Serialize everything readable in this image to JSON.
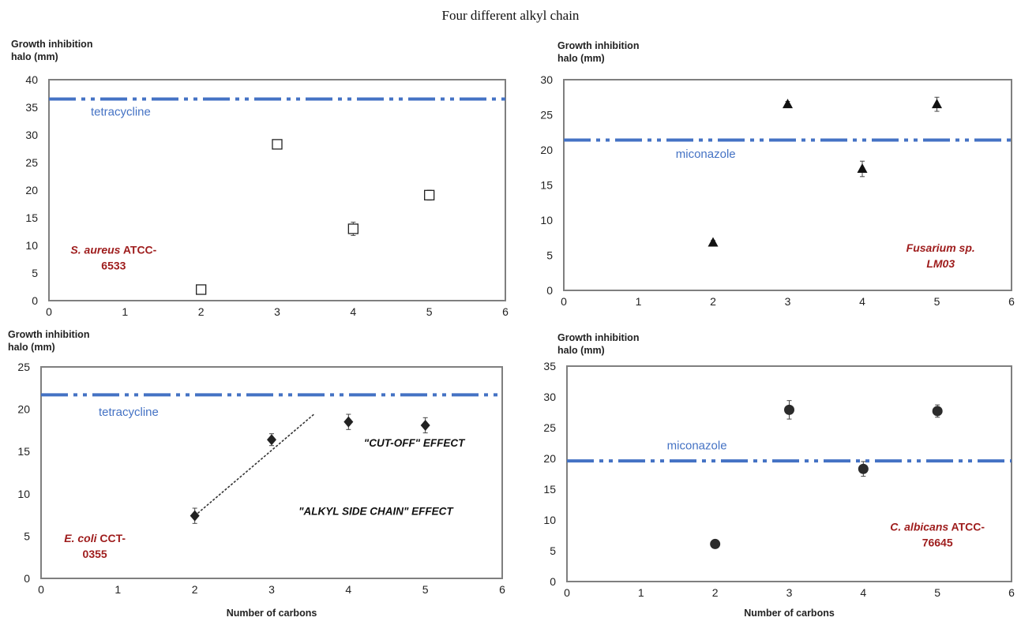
{
  "page_title": "Four different alkyl chain",
  "chart_data": [
    {
      "id": "s-aureus",
      "type": "scatter",
      "ylabel_lines": [
        "Growth inhibition",
        "halo (mm)"
      ],
      "xlabel": "",
      "xlim": [
        0,
        6
      ],
      "ylim": [
        0,
        40
      ],
      "xticks": [
        "0",
        "1",
        "2",
        "3",
        "4",
        "5",
        "6"
      ],
      "yticks": [
        "0",
        "5",
        "10",
        "15",
        "20",
        "25",
        "30",
        "35",
        "40"
      ],
      "marker": "open-square",
      "points": [
        {
          "x": 2,
          "y": 2,
          "err": 0.5
        },
        {
          "x": 3,
          "y": 28.3,
          "err": 0.6
        },
        {
          "x": 4,
          "y": 13,
          "err": 1.2
        },
        {
          "x": 5,
          "y": 19.1,
          "err": 0.9
        }
      ],
      "reference": {
        "label": "tetracycline",
        "y": 36.5,
        "color": "#4472c4"
      },
      "organism_lines": [
        [
          {
            "text": "S. aureus",
            "italic": true
          },
          {
            "text": " ATCC-",
            "italic": false
          }
        ],
        [
          {
            "text": "6533",
            "italic": false
          }
        ]
      ],
      "organism_anchor": {
        "x": 0.85,
        "y": 8.5
      },
      "ref_label_anchor": {
        "x": 0.55,
        "y": 33.5
      },
      "annotations": [],
      "trendline": null
    },
    {
      "id": "fusarium",
      "type": "scatter",
      "ylabel_lines": [
        "Growth inhibition",
        "halo (mm)"
      ],
      "xlabel": "",
      "xlim": [
        0,
        6
      ],
      "ylim": [
        0,
        30
      ],
      "xticks": [
        "0",
        "1",
        "2",
        "3",
        "4",
        "5",
        "6"
      ],
      "yticks": [
        "0",
        "5",
        "10",
        "15",
        "20",
        "25",
        "30"
      ],
      "marker": "filled-triangle",
      "points": [
        {
          "x": 2,
          "y": 6.8,
          "err": 0.3
        },
        {
          "x": 3,
          "y": 26.5,
          "err": 0.4
        },
        {
          "x": 4,
          "y": 17.3,
          "err": 1.1
        },
        {
          "x": 5,
          "y": 26.5,
          "err": 1.0
        }
      ],
      "reference": {
        "label": "miconazole",
        "y": 21.4,
        "color": "#4472c4"
      },
      "organism_lines": [
        [
          {
            "text": "Fusarium sp.",
            "italic": true
          }
        ],
        [
          {
            "text": "LM03",
            "italic": true
          }
        ]
      ],
      "organism_anchor": {
        "x": 5.05,
        "y": 5.5
      },
      "ref_label_anchor": {
        "x": 1.5,
        "y": 18.9
      },
      "annotations": [],
      "trendline": null
    },
    {
      "id": "e-coli",
      "type": "scatter",
      "ylabel_lines": [
        "Growth inhibition",
        "halo (mm)"
      ],
      "xlabel": "Number of carbons",
      "xlim": [
        0,
        6
      ],
      "ylim": [
        0,
        25
      ],
      "xticks": [
        "0",
        "1",
        "2",
        "3",
        "4",
        "5",
        "6"
      ],
      "yticks": [
        "0",
        "5",
        "10",
        "15",
        "20",
        "25"
      ],
      "marker": "filled-diamond",
      "points": [
        {
          "x": 2,
          "y": 7.4,
          "err": 0.9
        },
        {
          "x": 3,
          "y": 16.4,
          "err": 0.7
        },
        {
          "x": 4,
          "y": 18.5,
          "err": 0.9
        },
        {
          "x": 5,
          "y": 18.1,
          "err": 0.9
        }
      ],
      "reference": {
        "label": "tetracycline",
        "y": 21.7,
        "color": "#4472c4"
      },
      "organism_lines": [
        [
          {
            "text": "E. coli",
            "italic": true
          },
          {
            "text": " CCT-",
            "italic": false
          }
        ],
        [
          {
            "text": "0355",
            "italic": false
          }
        ]
      ],
      "organism_anchor": {
        "x": 0.7,
        "y": 4.3
      },
      "ref_label_anchor": {
        "x": 0.75,
        "y": 19.2
      },
      "annotations": [
        {
          "text": "\"CUT-OFF\" EFFECT",
          "x": 4.2,
          "y": 15.6
        },
        {
          "text": "\"ALKYL  SIDE CHAIN\" EFFECT",
          "x": 3.35,
          "y": 7.5
        }
      ],
      "trendline": {
        "x0": 2,
        "y0": 7.4,
        "x1": 3.55,
        "y1": 19.4
      }
    },
    {
      "id": "c-albicans",
      "type": "scatter",
      "ylabel_lines": [
        "Growth inhibition",
        "halo (mm)"
      ],
      "xlabel": "Number of carbons",
      "xlim": [
        0,
        6
      ],
      "ylim": [
        0,
        35
      ],
      "xticks": [
        "0",
        "1",
        "2",
        "3",
        "4",
        "5",
        "6"
      ],
      "yticks": [
        "0",
        "5",
        "10",
        "15",
        "20",
        "25",
        "30",
        "35"
      ],
      "marker": "filled-circle",
      "points": [
        {
          "x": 2,
          "y": 6.1,
          "err": 0.3
        },
        {
          "x": 3,
          "y": 27.9,
          "err": 1.5
        },
        {
          "x": 4,
          "y": 18.3,
          "err": 1.2
        },
        {
          "x": 5,
          "y": 27.7,
          "err": 1.0
        }
      ],
      "reference": {
        "label": "miconazole",
        "y": 19.6,
        "color": "#4472c4"
      },
      "organism_lines": [
        [
          {
            "text": "C. albicans",
            "italic": true
          },
          {
            "text": " ATCC-",
            "italic": false
          }
        ],
        [
          {
            "text": "76645",
            "italic": false
          }
        ]
      ],
      "organism_anchor": {
        "x": 5.0,
        "y": 8.3
      },
      "ref_label_anchor": {
        "x": 1.35,
        "y": 21.5
      },
      "annotations": [],
      "trendline": null
    }
  ]
}
